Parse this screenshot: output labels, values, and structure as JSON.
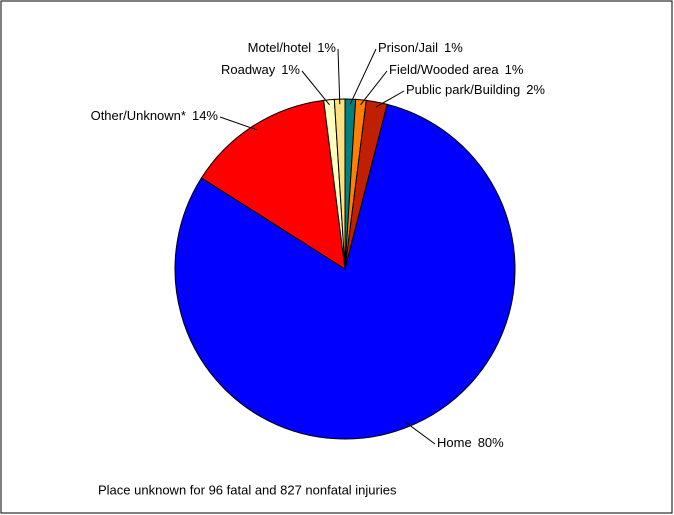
{
  "chart_data": {
    "type": "pie",
    "categories": [
      "Prison/Jail",
      "Field/Wooded area",
      "Public park/Building",
      "Home",
      "Other/Unknown*",
      "Roadway",
      "Motel/hotel"
    ],
    "values": [
      1,
      1,
      2,
      80,
      14,
      1,
      1
    ],
    "value_labels": [
      "1%",
      "1%",
      "2%",
      "80%",
      "14%",
      "1%",
      "1%"
    ],
    "colors": [
      "#008080",
      "#ff8000",
      "#c02000",
      "#0000ff",
      "#ff0000",
      "#ffffc0",
      "#ffe080"
    ],
    "note": "Place unknown for 96 fatal and 827 nonfatal injuries"
  }
}
